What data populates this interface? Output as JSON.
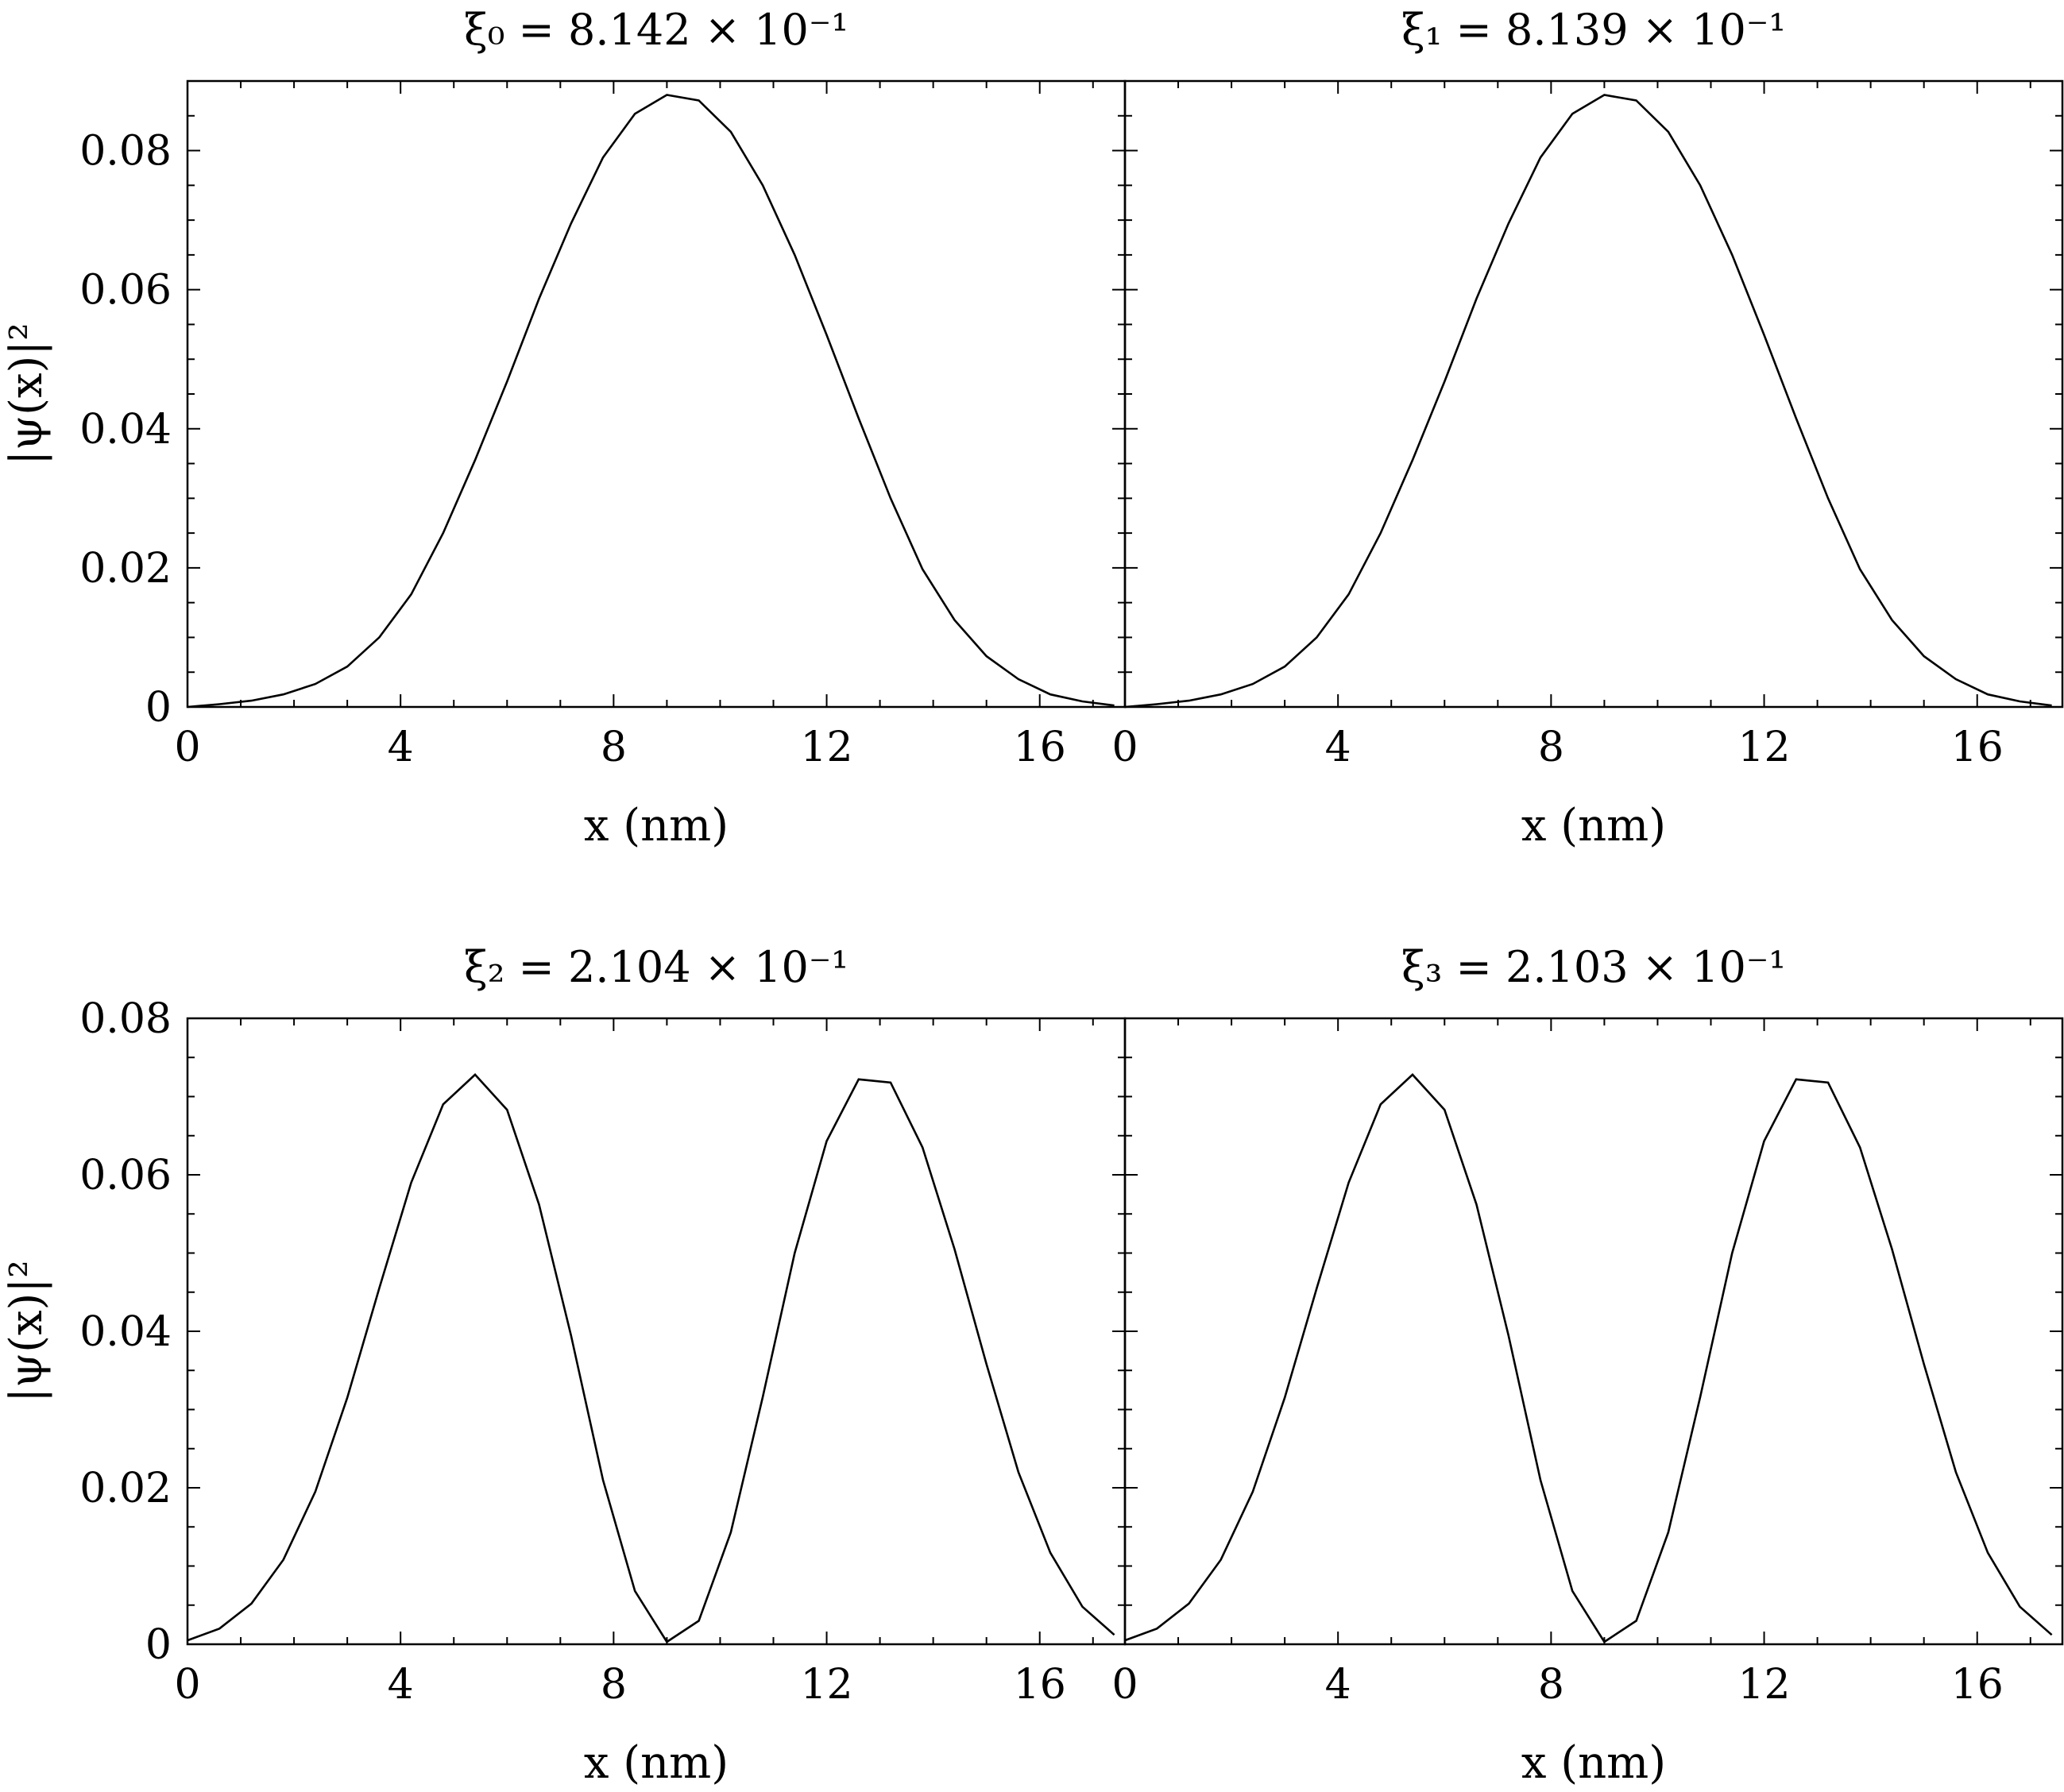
{
  "chart_data": [
    {
      "type": "line",
      "title": "ξ₀ = 8.142 × 10⁻¹",
      "xlabel": "x (nm)",
      "ylabel": "|ψ(x)|²",
      "xlim": [
        0,
        17.6
      ],
      "ylim": [
        0,
        0.09
      ],
      "xticks": [
        0,
        4,
        8,
        12,
        16
      ],
      "xtick_labels": [
        "0",
        "4",
        "8",
        "12",
        "16"
      ],
      "yticks": [
        0,
        0.02,
        0.04,
        0.06,
        0.08
      ],
      "ytick_labels": [
        "0",
        "0.02",
        "0.04",
        "0.06",
        "0.08"
      ],
      "grid": false,
      "x": [
        0,
        0.6,
        1.2,
        1.8,
        2.4,
        3.0,
        3.6,
        4.2,
        4.8,
        5.4,
        6.0,
        6.6,
        7.2,
        7.8,
        8.4,
        9.0,
        9.6,
        10.2,
        10.8,
        11.4,
        12.0,
        12.6,
        13.2,
        13.8,
        14.4,
        15.0,
        15.6,
        16.2,
        16.8,
        17.4
      ],
      "series": [
        {
          "values": [
            0.0,
            0.0004,
            0.0009,
            0.0018,
            0.0033,
            0.0058,
            0.01,
            0.0162,
            0.025,
            0.0355,
            0.0468,
            0.0587,
            0.0695,
            0.079,
            0.0853,
            0.088,
            0.0872,
            0.0827,
            0.075,
            0.065,
            0.0535,
            0.0415,
            0.03,
            0.0198,
            0.0125,
            0.0073,
            0.004,
            0.0018,
            0.0008,
            0.0002
          ]
        }
      ]
    },
    {
      "type": "line",
      "title": "ξ₁ = 8.139 × 10⁻¹",
      "xlabel": "x (nm)",
      "ylabel": "",
      "xlim": [
        0,
        17.6
      ],
      "ylim": [
        0,
        0.09
      ],
      "xticks": [
        0,
        4,
        8,
        12,
        16
      ],
      "xtick_labels": [
        "0",
        "4",
        "8",
        "12",
        "16"
      ],
      "yticks": [
        0,
        0.02,
        0.04,
        0.06,
        0.08
      ],
      "ytick_labels": [],
      "grid": false,
      "x": [
        0,
        0.6,
        1.2,
        1.8,
        2.4,
        3.0,
        3.6,
        4.2,
        4.8,
        5.4,
        6.0,
        6.6,
        7.2,
        7.8,
        8.4,
        9.0,
        9.6,
        10.2,
        10.8,
        11.4,
        12.0,
        12.6,
        13.2,
        13.8,
        14.4,
        15.0,
        15.6,
        16.2,
        16.8,
        17.4
      ],
      "series": [
        {
          "values": [
            0.0,
            0.0004,
            0.0009,
            0.0018,
            0.0033,
            0.0058,
            0.01,
            0.0162,
            0.025,
            0.0355,
            0.0468,
            0.0587,
            0.0695,
            0.079,
            0.0853,
            0.088,
            0.0872,
            0.0827,
            0.075,
            0.065,
            0.0535,
            0.0415,
            0.03,
            0.0198,
            0.0125,
            0.0073,
            0.004,
            0.0018,
            0.0008,
            0.0002
          ]
        }
      ]
    },
    {
      "type": "line",
      "title": "ξ₂ = 2.104 × 10⁻¹",
      "xlabel": "x (nm)",
      "ylabel": "|ψ(x)|²",
      "xlim": [
        0,
        17.6
      ],
      "ylim": [
        0,
        0.08
      ],
      "xticks": [
        0,
        4,
        8,
        12,
        16
      ],
      "xtick_labels": [
        "0",
        "4",
        "8",
        "12",
        "16"
      ],
      "yticks": [
        0,
        0.02,
        0.04,
        0.06,
        0.08
      ],
      "ytick_labels": [
        "0",
        "0.02",
        "0.04",
        "0.06",
        "0.08"
      ],
      "grid": false,
      "x": [
        0,
        0.6,
        1.2,
        1.8,
        2.4,
        3.0,
        3.6,
        4.2,
        4.8,
        5.4,
        6.0,
        6.6,
        7.2,
        7.8,
        8.4,
        9.0,
        9.6,
        10.2,
        10.8,
        11.4,
        12.0,
        12.6,
        13.2,
        13.8,
        14.4,
        15.0,
        15.6,
        16.2,
        16.8,
        17.4
      ],
      "series": [
        {
          "values": [
            0.0005,
            0.002,
            0.0052,
            0.0108,
            0.0195,
            0.0315,
            0.0455,
            0.059,
            0.069,
            0.0728,
            0.0683,
            0.0562,
            0.0395,
            0.021,
            0.0068,
            0.0003,
            0.003,
            0.0143,
            0.0316,
            0.05,
            0.0643,
            0.0722,
            0.0718,
            0.0635,
            0.0505,
            0.0358,
            0.022,
            0.0117,
            0.0048,
            0.0012
          ]
        }
      ]
    },
    {
      "type": "line",
      "title": "ξ₃ = 2.103 × 10⁻¹",
      "xlabel": "x (nm)",
      "ylabel": "",
      "xlim": [
        0,
        17.6
      ],
      "ylim": [
        0,
        0.08
      ],
      "xticks": [
        0,
        4,
        8,
        12,
        16
      ],
      "xtick_labels": [
        "0",
        "4",
        "8",
        "12",
        "16"
      ],
      "yticks": [
        0,
        0.02,
        0.04,
        0.06,
        0.08
      ],
      "ytick_labels": [],
      "grid": false,
      "x": [
        0,
        0.6,
        1.2,
        1.8,
        2.4,
        3.0,
        3.6,
        4.2,
        4.8,
        5.4,
        6.0,
        6.6,
        7.2,
        7.8,
        8.4,
        9.0,
        9.6,
        10.2,
        10.8,
        11.4,
        12.0,
        12.6,
        13.2,
        13.8,
        14.4,
        15.0,
        15.6,
        16.2,
        16.8,
        17.4
      ],
      "series": [
        {
          "values": [
            0.0005,
            0.002,
            0.0052,
            0.0108,
            0.0195,
            0.0315,
            0.0455,
            0.059,
            0.069,
            0.0728,
            0.0683,
            0.0562,
            0.0395,
            0.021,
            0.0068,
            0.0003,
            0.003,
            0.0143,
            0.0316,
            0.05,
            0.0643,
            0.0722,
            0.0718,
            0.0635,
            0.0505,
            0.0358,
            0.022,
            0.0117,
            0.0048,
            0.0012
          ]
        }
      ]
    }
  ]
}
